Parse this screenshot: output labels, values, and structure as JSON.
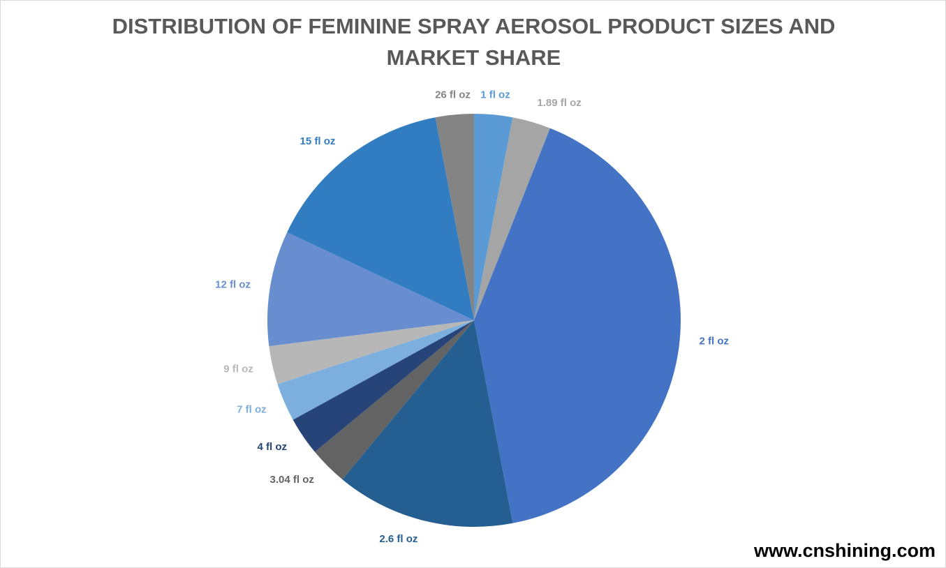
{
  "chart_data": {
    "type": "pie",
    "title": "DISTRIBUTION OF FEMININE SPRAY AEROSOL PRODUCT SIZES AND MARKET SHARE",
    "categories": [
      "1 fl oz",
      "1.89 fl oz",
      "2 fl oz",
      "2.6 fl oz",
      "3.04 fl oz",
      "4 fl oz",
      "7 fl oz",
      "9 fl oz",
      "12 fl oz",
      "15 fl oz",
      "26 fl oz"
    ],
    "values": [
      3,
      3,
      41,
      14,
      3,
      3,
      3,
      3,
      9,
      15,
      3
    ],
    "colors": [
      "#5b9bd5",
      "#a5a5a5",
      "#4472c4",
      "#255e91",
      "#636363",
      "#264478",
      "#7cafdd",
      "#b7b7b7",
      "#698ed0",
      "#327dc2",
      "#848484"
    ]
  },
  "watermark": "www.cnshining.com"
}
